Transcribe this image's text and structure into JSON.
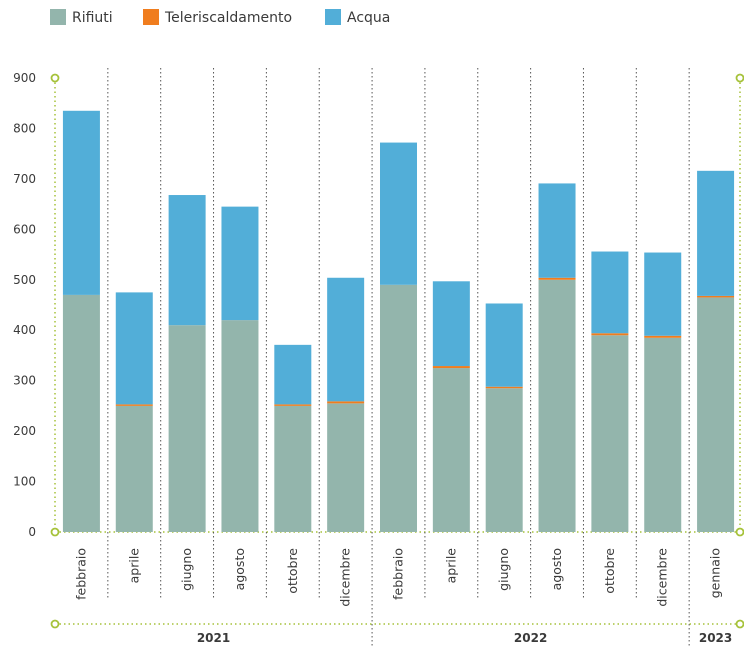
{
  "chart_data": {
    "type": "bar",
    "stacked": true,
    "title": "",
    "xlabel": "",
    "ylabel": "",
    "ylim": [
      0,
      900
    ],
    "yticks": [
      0,
      100,
      200,
      300,
      400,
      500,
      600,
      700,
      800,
      900
    ],
    "categories": [
      "febbraio",
      "aprile",
      "giugno",
      "agosto",
      "ottobre",
      "dicembre",
      "febbraio",
      "aprile",
      "giugno",
      "agosto",
      "ottobre",
      "dicembre",
      "gennaio"
    ],
    "groups": [
      {
        "label": "2021",
        "start": 0,
        "end": 5
      },
      {
        "label": "2022",
        "start": 6,
        "end": 11
      },
      {
        "label": "2023",
        "start": 12,
        "end": 12
      }
    ],
    "series": [
      {
        "name": "Rifiuti",
        "color": "#93b5ac",
        "values": [
          470,
          250,
          410,
          420,
          250,
          255,
          490,
          325,
          285,
          500,
          390,
          385,
          465
        ]
      },
      {
        "name": "Teleriscaldamento",
        "color": "#f07d1e",
        "values": [
          0,
          3,
          0,
          0,
          3,
          4,
          0,
          4,
          3,
          4,
          4,
          4,
          3
        ]
      },
      {
        "name": "Acqua",
        "color": "#52aed8",
        "values": [
          365,
          222,
          258,
          225,
          118,
          245,
          282,
          168,
          165,
          187,
          162,
          165,
          248
        ]
      }
    ],
    "legend_position": "top-left",
    "grid": false
  }
}
